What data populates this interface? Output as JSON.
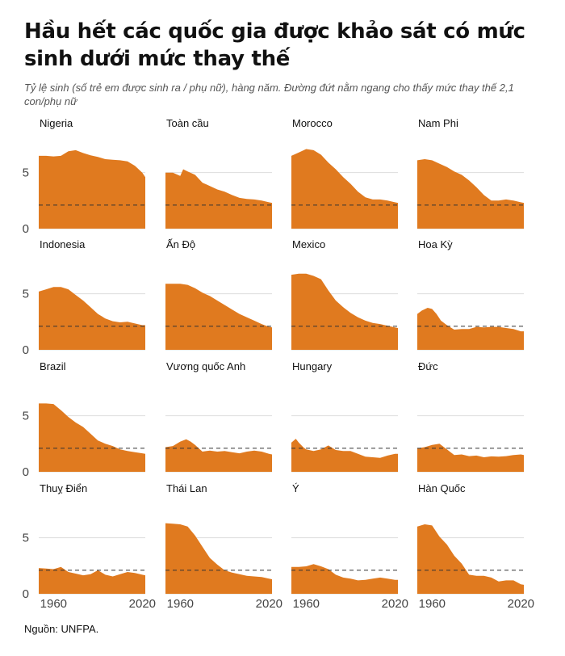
{
  "title": "Hầu hết các quốc gia được khảo sát có mức sinh dưới mức thay thế",
  "subtitle": "Tỷ lệ sinh (số trẻ em được sinh ra / phụ nữ), hàng năm. Đường đứt nằm ngang cho thấy mức thay thế 2,1 con/phụ nữ",
  "source": "Nguồn: UNFPA.",
  "colors": {
    "area": "#e07a1f",
    "replacement_line": "#333333",
    "grid": "#dddddd"
  },
  "chart_data": {
    "type": "area",
    "layout": "small-multiples 4x4",
    "x_range": [
      1950,
      2022
    ],
    "y_range": [
      0,
      7.5
    ],
    "y_ticks": [
      0,
      5
    ],
    "x_ticks": [
      1960,
      2020
    ],
    "replacement_level": 2.1,
    "panels": [
      {
        "name": "Nigeria",
        "x": [
          1950,
          1955,
          1960,
          1965,
          1970,
          1975,
          1980,
          1985,
          1990,
          1995,
          2000,
          2005,
          2010,
          2015,
          2020,
          2022
        ],
        "y": [
          6.5,
          6.5,
          6.45,
          6.5,
          6.9,
          7.0,
          6.75,
          6.55,
          6.4,
          6.2,
          6.15,
          6.1,
          6.0,
          5.6,
          5.0,
          4.6
        ]
      },
      {
        "name": "Toàn cầu",
        "x": [
          1950,
          1955,
          1960,
          1962,
          1965,
          1970,
          1975,
          1980,
          1985,
          1990,
          1995,
          2000,
          2005,
          2010,
          2015,
          2020,
          2022
        ],
        "y": [
          5.0,
          5.0,
          4.7,
          5.3,
          5.1,
          4.8,
          4.1,
          3.8,
          3.5,
          3.3,
          3.0,
          2.75,
          2.65,
          2.6,
          2.5,
          2.35,
          2.3
        ]
      },
      {
        "name": "Morocco",
        "x": [
          1950,
          1955,
          1960,
          1965,
          1970,
          1975,
          1980,
          1985,
          1990,
          1995,
          2000,
          2005,
          2010,
          2015,
          2020,
          2022
        ],
        "y": [
          6.5,
          6.8,
          7.1,
          7.0,
          6.6,
          5.9,
          5.3,
          4.6,
          4.0,
          3.3,
          2.8,
          2.6,
          2.6,
          2.5,
          2.35,
          2.3
        ]
      },
      {
        "name": "Nam Phi",
        "x": [
          1950,
          1955,
          1960,
          1965,
          1970,
          1975,
          1980,
          1985,
          1990,
          1995,
          2000,
          2005,
          2010,
          2015,
          2020,
          2022
        ],
        "y": [
          6.1,
          6.2,
          6.1,
          5.8,
          5.5,
          5.1,
          4.8,
          4.3,
          3.7,
          3.0,
          2.5,
          2.5,
          2.6,
          2.5,
          2.35,
          2.3
        ]
      },
      {
        "name": "Indonesia",
        "x": [
          1950,
          1955,
          1960,
          1965,
          1970,
          1975,
          1980,
          1985,
          1990,
          1995,
          2000,
          2005,
          2010,
          2015,
          2020,
          2022
        ],
        "y": [
          5.2,
          5.4,
          5.6,
          5.6,
          5.4,
          4.9,
          4.4,
          3.8,
          3.2,
          2.8,
          2.55,
          2.45,
          2.5,
          2.35,
          2.2,
          2.2
        ]
      },
      {
        "name": "Ấn Độ",
        "x": [
          1950,
          1955,
          1960,
          1965,
          1970,
          1975,
          1980,
          1985,
          1990,
          1995,
          2000,
          2005,
          2010,
          2015,
          2020,
          2022
        ],
        "y": [
          5.9,
          5.9,
          5.9,
          5.8,
          5.5,
          5.1,
          4.8,
          4.4,
          4.0,
          3.6,
          3.2,
          2.9,
          2.6,
          2.3,
          2.05,
          2.0
        ]
      },
      {
        "name": "Mexico",
        "x": [
          1950,
          1955,
          1960,
          1965,
          1970,
          1975,
          1980,
          1985,
          1990,
          1995,
          2000,
          2005,
          2010,
          2015,
          2020,
          2022
        ],
        "y": [
          6.7,
          6.8,
          6.8,
          6.6,
          6.3,
          5.3,
          4.4,
          3.8,
          3.3,
          2.9,
          2.6,
          2.4,
          2.3,
          2.15,
          2.0,
          1.95
        ]
      },
      {
        "name": "Hoa Kỳ",
        "x": [
          1950,
          1953,
          1957,
          1960,
          1963,
          1966,
          1970,
          1975,
          1980,
          1985,
          1990,
          1995,
          2000,
          2005,
          2010,
          2015,
          2020,
          2022
        ],
        "y": [
          3.2,
          3.5,
          3.75,
          3.65,
          3.2,
          2.6,
          2.2,
          1.8,
          1.85,
          1.85,
          2.05,
          2.0,
          2.05,
          2.05,
          1.95,
          1.85,
          1.65,
          1.65
        ]
      },
      {
        "name": "Brazil",
        "x": [
          1950,
          1955,
          1960,
          1965,
          1970,
          1975,
          1980,
          1985,
          1990,
          1995,
          2000,
          2005,
          2010,
          2015,
          2020,
          2022
        ],
        "y": [
          6.1,
          6.1,
          6.05,
          5.5,
          4.9,
          4.4,
          4.0,
          3.4,
          2.8,
          2.5,
          2.3,
          2.0,
          1.85,
          1.75,
          1.65,
          1.6
        ]
      },
      {
        "name": "Vương quốc Anh",
        "x": [
          1950,
          1955,
          1960,
          1964,
          1967,
          1970,
          1975,
          1980,
          1985,
          1990,
          1995,
          2000,
          2005,
          2010,
          2015,
          2020,
          2022
        ],
        "y": [
          2.2,
          2.3,
          2.7,
          2.9,
          2.7,
          2.4,
          1.8,
          1.9,
          1.8,
          1.85,
          1.75,
          1.65,
          1.8,
          1.9,
          1.8,
          1.6,
          1.55
        ]
      },
      {
        "name": "Hungary",
        "x": [
          1950,
          1953,
          1955,
          1958,
          1960,
          1965,
          1970,
          1975,
          1980,
          1985,
          1990,
          1995,
          2000,
          2005,
          2010,
          2015,
          2020,
          2022
        ],
        "y": [
          2.6,
          2.95,
          2.6,
          2.2,
          2.0,
          1.85,
          2.0,
          2.35,
          1.95,
          1.85,
          1.85,
          1.6,
          1.35,
          1.3,
          1.25,
          1.45,
          1.6,
          1.6
        ]
      },
      {
        "name": "Đức",
        "x": [
          1950,
          1955,
          1960,
          1965,
          1970,
          1975,
          1980,
          1985,
          1990,
          1995,
          2000,
          2005,
          2010,
          2015,
          2020,
          2022
        ],
        "y": [
          2.1,
          2.2,
          2.4,
          2.5,
          2.0,
          1.5,
          1.55,
          1.4,
          1.45,
          1.3,
          1.38,
          1.35,
          1.4,
          1.5,
          1.55,
          1.5
        ]
      },
      {
        "name": "Thuỵ Điển",
        "x": [
          1950,
          1955,
          1960,
          1965,
          1970,
          1975,
          1980,
          1985,
          1990,
          1995,
          2000,
          2005,
          2010,
          2015,
          2020,
          2022
        ],
        "y": [
          2.3,
          2.25,
          2.2,
          2.4,
          1.95,
          1.8,
          1.65,
          1.75,
          2.1,
          1.7,
          1.55,
          1.75,
          1.95,
          1.85,
          1.7,
          1.65
        ]
      },
      {
        "name": "Thái Lan",
        "x": [
          1950,
          1955,
          1960,
          1965,
          1970,
          1975,
          1980,
          1985,
          1990,
          1995,
          2000,
          2005,
          2010,
          2015,
          2020,
          2022
        ],
        "y": [
          6.3,
          6.25,
          6.2,
          6.0,
          5.2,
          4.2,
          3.2,
          2.6,
          2.1,
          1.9,
          1.75,
          1.6,
          1.55,
          1.5,
          1.35,
          1.3
        ]
      },
      {
        "name": "Ý",
        "x": [
          1950,
          1955,
          1960,
          1965,
          1970,
          1975,
          1980,
          1985,
          1990,
          1995,
          2000,
          2005,
          2010,
          2015,
          2020,
          2022
        ],
        "y": [
          2.4,
          2.4,
          2.45,
          2.65,
          2.45,
          2.2,
          1.7,
          1.45,
          1.35,
          1.2,
          1.25,
          1.35,
          1.45,
          1.35,
          1.25,
          1.25
        ]
      },
      {
        "name": "Hàn Quốc",
        "x": [
          1950,
          1955,
          1960,
          1965,
          1970,
          1975,
          1980,
          1985,
          1990,
          1995,
          2000,
          2005,
          2010,
          2015,
          2020,
          2022
        ],
        "y": [
          6.0,
          6.2,
          6.1,
          5.1,
          4.4,
          3.4,
          2.7,
          1.7,
          1.6,
          1.6,
          1.45,
          1.1,
          1.2,
          1.2,
          0.85,
          0.8
        ]
      }
    ]
  }
}
